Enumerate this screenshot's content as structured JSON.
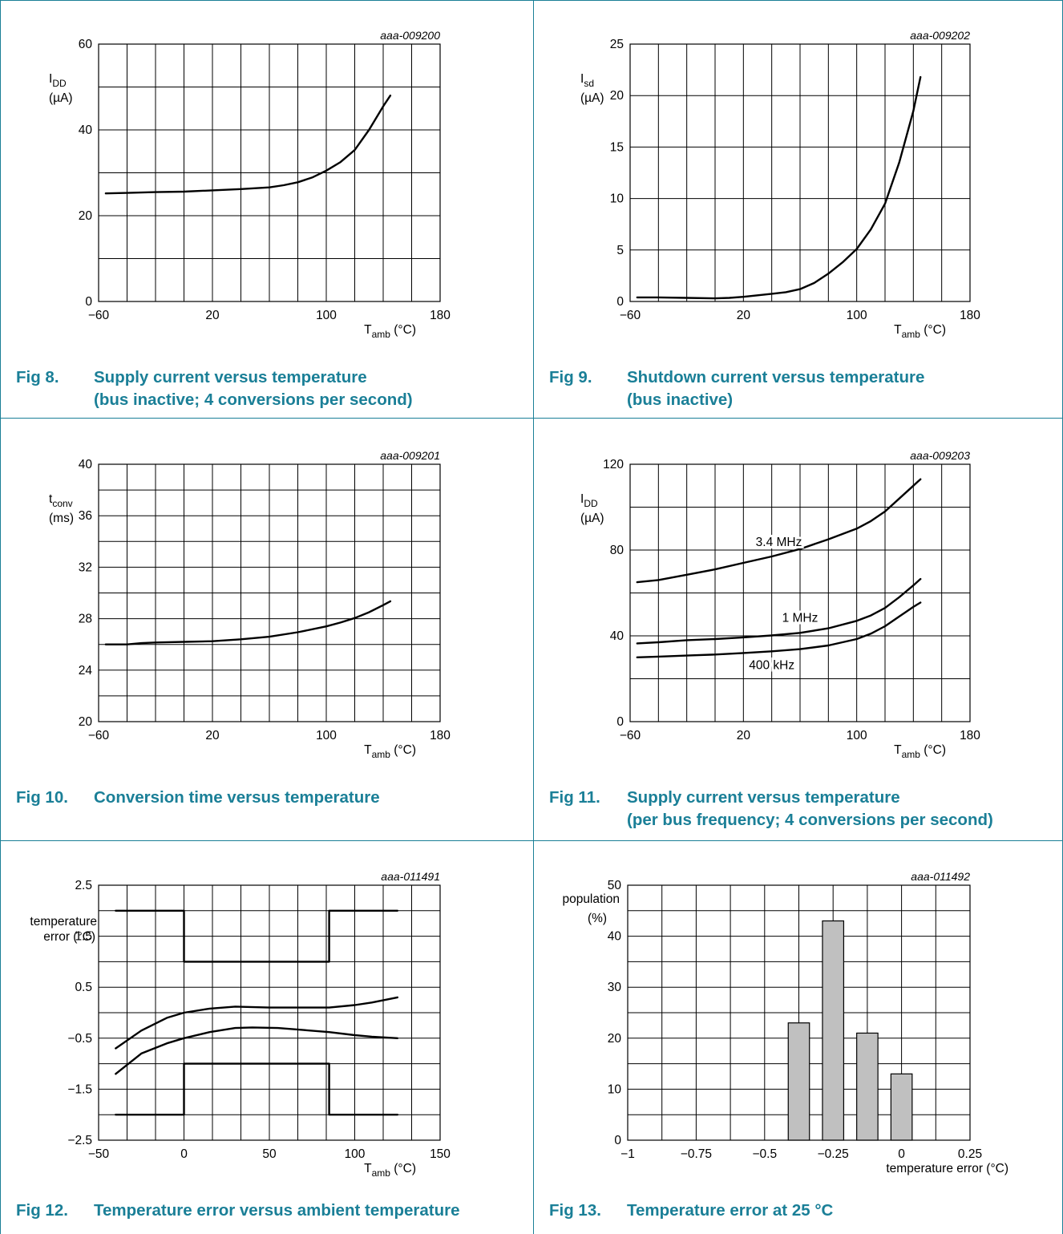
{
  "colors": {
    "accent": "#1a7f97",
    "bar_fill": "#c0c0c0"
  },
  "figures": [
    {
      "code": "aaa-009200",
      "ylabel": [
        "I",
        "DD",
        "(µA)"
      ],
      "xlabel": [
        "T",
        "amb",
        " (°C)"
      ],
      "caption": {
        "num": "Fig 8.",
        "lines": [
          "Supply current versus temperature",
          "(bus inactive; 4 conversions per second)"
        ]
      }
    },
    {
      "code": "aaa-009202",
      "ylabel": [
        "I",
        "sd",
        "(µA)"
      ],
      "xlabel": [
        "T",
        "amb",
        " (°C)"
      ],
      "caption": {
        "num": "Fig 9.",
        "lines": [
          "Shutdown current versus temperature",
          "(bus inactive)"
        ]
      }
    },
    {
      "code": "aaa-009201",
      "ylabel": [
        "t",
        "conv",
        "(ms)"
      ],
      "xlabel": [
        "T",
        "amb",
        " (°C)"
      ],
      "caption": {
        "num": "Fig 10.",
        "lines": [
          "Conversion time versus temperature"
        ]
      }
    },
    {
      "code": "aaa-009203",
      "ylabel": [
        "I",
        "DD",
        "(µA)"
      ],
      "xlabel": [
        "T",
        "amb",
        " (°C)"
      ],
      "caption": {
        "num": "Fig 11.",
        "lines": [
          "Supply current versus temperature",
          "(per bus frequency; 4 conversions per second)"
        ]
      }
    },
    {
      "code": "aaa-011491",
      "ylabel": [
        "temperature",
        "error (°C)"
      ],
      "xlabel": [
        "T",
        "amb",
        " (°C)"
      ],
      "caption": {
        "num": "Fig 12.",
        "lines": [
          "Temperature error versus ambient temperature"
        ]
      }
    },
    {
      "code": "aaa-011492",
      "ylabel": [
        "population",
        "(%)"
      ],
      "xlabel": [
        "temperature error (°C)"
      ],
      "caption": {
        "num": "Fig 13.",
        "lines": [
          "Temperature error at 25 °C"
        ]
      }
    }
  ],
  "chart_data": [
    {
      "type": "line",
      "code": "aaa-009200",
      "xlim": [
        -60,
        180
      ],
      "ylim": [
        0,
        60
      ],
      "xticks": [
        "−60",
        "20",
        "100",
        "180"
      ],
      "yticks": [
        "0",
        "20",
        "40",
        "60"
      ],
      "grid": true,
      "series": [
        {
          "x": [
            -55,
            -40,
            -20,
            0,
            20,
            40,
            60,
            70,
            80,
            90,
            100,
            110,
            120,
            130,
            140,
            145
          ],
          "y": [
            25.2,
            25.3,
            25.5,
            25.6,
            25.9,
            26.2,
            26.6,
            27.1,
            27.8,
            28.9,
            30.5,
            32.5,
            35.3,
            40,
            45.5,
            48
          ]
        }
      ]
    },
    {
      "type": "line",
      "code": "aaa-009202",
      "xlim": [
        -60,
        180
      ],
      "ylim": [
        0,
        25
      ],
      "xticks": [
        "−60",
        "20",
        "100",
        "180"
      ],
      "yticks": [
        "0",
        "5",
        "10",
        "15",
        "20",
        "25"
      ],
      "grid": true,
      "series": [
        {
          "x": [
            -55,
            -40,
            -20,
            0,
            10,
            20,
            30,
            40,
            50,
            60,
            70,
            80,
            90,
            100,
            110,
            120,
            130,
            140,
            145
          ],
          "y": [
            0.4,
            0.4,
            0.35,
            0.3,
            0.35,
            0.45,
            0.6,
            0.75,
            0.9,
            1.2,
            1.8,
            2.7,
            3.8,
            5.1,
            7.0,
            9.5,
            13.5,
            18.5,
            21.8
          ]
        }
      ]
    },
    {
      "type": "line",
      "code": "aaa-009201",
      "xlim": [
        -60,
        180
      ],
      "ylim": [
        20,
        40
      ],
      "xticks": [
        "−60",
        "20",
        "100",
        "180"
      ],
      "yticks": [
        "20",
        "24",
        "28",
        "32",
        "36",
        "40"
      ],
      "grid": true,
      "series": [
        {
          "x": [
            -55,
            -40,
            -30,
            -20,
            0,
            20,
            40,
            60,
            80,
            100,
            110,
            120,
            130,
            140,
            145
          ],
          "y": [
            26,
            26,
            26.1,
            26.15,
            26.2,
            26.25,
            26.4,
            26.6,
            26.95,
            27.4,
            27.7,
            28.05,
            28.5,
            29.05,
            29.35
          ]
        }
      ]
    },
    {
      "type": "line",
      "code": "aaa-009203",
      "xlim": [
        -60,
        180
      ],
      "ylim": [
        0,
        120
      ],
      "xticks": [
        "−60",
        "20",
        "100",
        "180"
      ],
      "yticks": [
        "0",
        "40",
        "80",
        "120"
      ],
      "grid": true,
      "series": [
        {
          "name": "3.4 MHz",
          "x": [
            -55,
            -40,
            -20,
            0,
            20,
            40,
            60,
            80,
            100,
            110,
            120,
            130,
            140,
            145
          ],
          "y": [
            65,
            66,
            68.5,
            71,
            74,
            77,
            80.5,
            85,
            90,
            93.5,
            98,
            104,
            110,
            113
          ]
        },
        {
          "name": "1 MHz",
          "x": [
            -55,
            -40,
            -20,
            0,
            20,
            40,
            60,
            80,
            100,
            110,
            120,
            130,
            140,
            145
          ],
          "y": [
            36.5,
            37,
            38,
            38.5,
            39.3,
            40.2,
            41.4,
            43.5,
            47,
            49.5,
            53,
            58,
            63.5,
            66.5
          ]
        },
        {
          "name": "400 kHz",
          "x": [
            -55,
            -40,
            -20,
            0,
            20,
            40,
            60,
            80,
            100,
            110,
            120,
            130,
            140,
            145
          ],
          "y": [
            30,
            30.3,
            30.8,
            31.3,
            32,
            32.8,
            33.8,
            35.5,
            38.5,
            41,
            44.5,
            49,
            53.5,
            55.5
          ]
        }
      ]
    },
    {
      "type": "line",
      "code": "aaa-011491",
      "xlim": [
        -50,
        150
      ],
      "ylim": [
        -2.5,
        2.5
      ],
      "xticks": [
        "−50",
        "0",
        "50",
        "100",
        "150"
      ],
      "yticks": [
        "−2.5",
        "−1.5",
        "−0.5",
        "0.5",
        "1.5",
        "2.5"
      ],
      "grid": true,
      "series": [
        {
          "x": [
            -40,
            0,
            0,
            85,
            85,
            125
          ],
          "y": [
            2,
            2,
            1,
            1,
            2,
            2
          ]
        },
        {
          "x": [
            -40,
            -25,
            -10,
            0,
            15,
            30,
            50,
            70,
            85,
            100,
            110,
            125
          ],
          "y": [
            -0.7,
            -0.35,
            -0.1,
            0,
            0.08,
            0.12,
            0.1,
            0.1,
            0.1,
            0.15,
            0.2,
            0.3
          ]
        },
        {
          "x": [
            -40,
            -25,
            -10,
            0,
            15,
            30,
            40,
            55,
            70,
            85,
            100,
            110,
            125
          ],
          "y": [
            -1.2,
            -0.8,
            -0.6,
            -0.5,
            -0.38,
            -0.3,
            -0.29,
            -0.3,
            -0.34,
            -0.38,
            -0.44,
            -0.47,
            -0.5
          ]
        },
        {
          "x": [
            -40,
            0,
            0,
            85,
            85,
            125
          ],
          "y": [
            -2,
            -2,
            -1,
            -1,
            -2,
            -2
          ]
        }
      ]
    },
    {
      "type": "bar",
      "code": "aaa-011492",
      "xlim": [
        -1,
        0.25
      ],
      "ylim": [
        0,
        50
      ],
      "xticks": [
        "−1",
        "−0.75",
        "−0.5",
        "−0.25",
        "0",
        "0.25"
      ],
      "yticks": [
        "0",
        "10",
        "20",
        "30",
        "40",
        "50"
      ],
      "grid": true,
      "categories": [
        -0.375,
        -0.25,
        -0.125,
        0
      ],
      "values": [
        23,
        43,
        21,
        13
      ]
    }
  ]
}
